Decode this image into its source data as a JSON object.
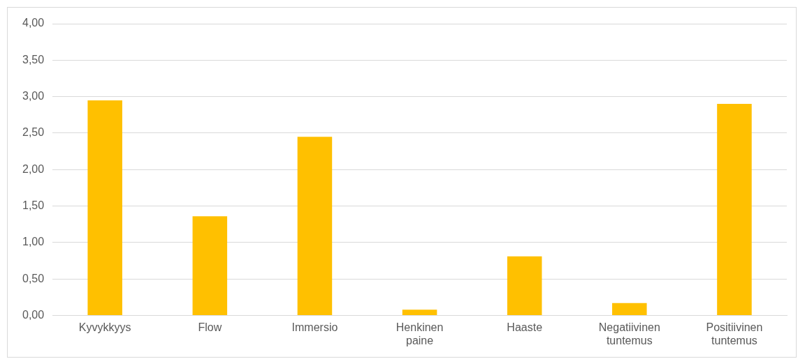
{
  "chart_data": {
    "type": "bar",
    "categories": [
      "Kyvykkyys",
      "Flow",
      "Immersio",
      "Henkinen paine",
      "Haaste",
      "Negatiivinen tuntemus",
      "Positiivinen tuntemus"
    ],
    "values": [
      2.95,
      1.36,
      2.45,
      0.08,
      0.81,
      0.17,
      2.9
    ],
    "color": "#ffc000",
    "ylim": [
      0,
      4
    ],
    "yticks": [
      {
        "value": 0,
        "label": "0,00"
      },
      {
        "value": 0.5,
        "label": "0,50"
      },
      {
        "value": 1,
        "label": "1,00"
      },
      {
        "value": 1.5,
        "label": "1,50"
      },
      {
        "value": 2,
        "label": "2,00"
      },
      {
        "value": 2.5,
        "label": "2,50"
      },
      {
        "value": 3,
        "label": "3,00"
      },
      {
        "value": 3.5,
        "label": "3,50"
      },
      {
        "value": 4,
        "label": "4,00"
      }
    ],
    "grid": "y",
    "legend": false
  }
}
